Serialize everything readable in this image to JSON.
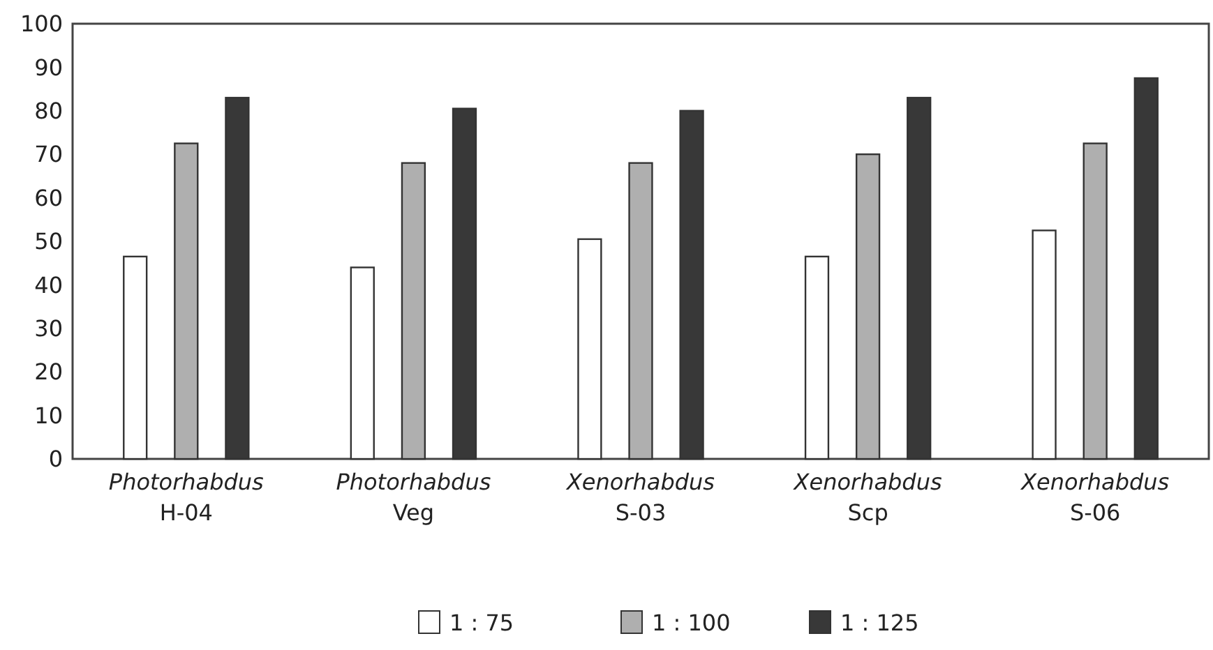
{
  "chart_data": {
    "type": "bar",
    "categories": [
      "Photorhabdus\nH-04",
      "Photorhabdus\nVeg",
      "Xenorhabdus\nS-03",
      "Xenorhabdus\nScp",
      "Xenorhabdus\nS-06"
    ],
    "series": [
      {
        "name": "1 : 75",
        "color": "#ffffff",
        "values": [
          46.5,
          44,
          50.5,
          46.5,
          52.5
        ]
      },
      {
        "name": "1 : 100",
        "color": "#afafaf",
        "values": [
          72.5,
          68,
          68,
          70,
          72.5
        ]
      },
      {
        "name": "1 : 125",
        "color": "#383838",
        "values": [
          83,
          80.5,
          80,
          83,
          87.5
        ]
      }
    ],
    "ylim": [
      0,
      100
    ],
    "yticks": [
      0,
      10,
      20,
      30,
      40,
      50,
      60,
      70,
      80,
      90,
      100
    ],
    "grid": false,
    "legend": "bottom"
  }
}
